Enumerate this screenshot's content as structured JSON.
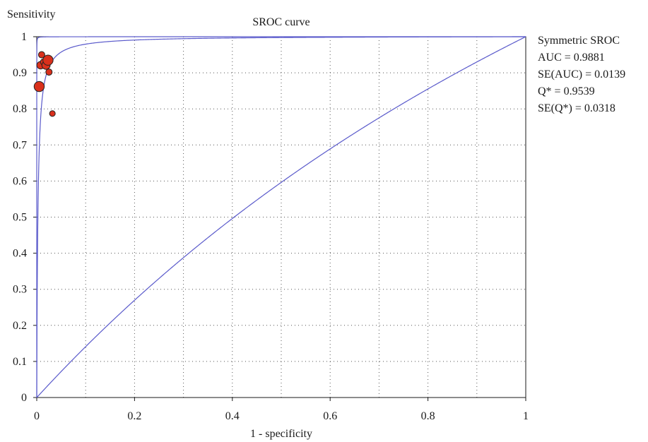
{
  "chart_data": {
    "type": "scatter",
    "title": "SROC curve",
    "xlabel": "1 - specificity",
    "ylabel": "Sensitivity",
    "xlim": [
      0,
      1
    ],
    "ylim": [
      0,
      1
    ],
    "x_ticks": [
      "0",
      "0.2",
      "0.4",
      "0.6",
      "0.8",
      "1"
    ],
    "y_ticks": [
      "0",
      "0.1",
      "0.2",
      "0.3",
      "0.4",
      "0.5",
      "0.6",
      "0.7",
      "0.8",
      "0.9",
      "1"
    ],
    "x_gridlines": [
      0.1,
      0.2,
      0.3,
      0.4,
      0.5,
      0.6,
      0.7,
      0.8,
      0.9
    ],
    "y_gridlines": [
      0.1,
      0.2,
      0.3,
      0.4,
      0.5,
      0.6,
      0.7,
      0.8,
      0.9
    ],
    "grid": "dotted",
    "point_color": "#d9301c",
    "curve_color": "#5a5acb",
    "points": [
      {
        "x": 0.005,
        "y": 0.862,
        "weight": 1.6
      },
      {
        "x": 0.008,
        "y": 0.921,
        "weight": 1.2
      },
      {
        "x": 0.01,
        "y": 0.95,
        "weight": 1.0
      },
      {
        "x": 0.014,
        "y": 0.93,
        "weight": 1.0
      },
      {
        "x": 0.019,
        "y": 0.921,
        "weight": 1.3
      },
      {
        "x": 0.023,
        "y": 0.935,
        "weight": 1.6
      },
      {
        "x": 0.025,
        "y": 0.902,
        "weight": 1.0
      },
      {
        "x": 0.032,
        "y": 0.787,
        "weight": 0.9
      }
    ],
    "sroc": {
      "q_star": 0.9539,
      "se_q_star": 0.0318
    },
    "stats": {
      "heading": "Symmetric SROC",
      "lines": [
        "AUC = 0.9881",
        "SE(AUC) = 0.0139",
        "Q* = 0.9539",
        "SE(Q*) = 0.0318"
      ]
    },
    "legend_position": "right"
  }
}
